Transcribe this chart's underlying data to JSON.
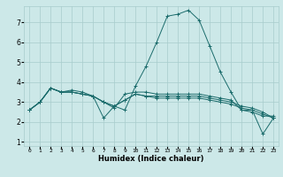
{
  "xlabel": "Humidex (Indice chaleur)",
  "ylabel": "",
  "xlim": [
    -0.5,
    23.5
  ],
  "ylim": [
    0.8,
    7.8
  ],
  "yticks": [
    1,
    2,
    3,
    4,
    5,
    6,
    7
  ],
  "xticks": [
    0,
    1,
    2,
    3,
    4,
    5,
    6,
    7,
    8,
    9,
    10,
    11,
    12,
    13,
    14,
    15,
    16,
    17,
    18,
    19,
    20,
    21,
    22,
    23
  ],
  "background_color": "#cce8e8",
  "grid_color": "#a8cccc",
  "line_color": "#1a6b6b",
  "lines": [
    {
      "x": [
        0,
        1,
        2,
        3,
        4,
        5,
        6,
        7,
        8,
        9,
        10,
        11,
        12,
        13,
        14,
        15,
        16,
        17,
        18,
        19,
        20,
        21,
        22,
        23
      ],
      "y": [
        2.6,
        3.0,
        3.7,
        3.5,
        3.5,
        3.4,
        3.3,
        2.2,
        2.8,
        2.6,
        3.8,
        4.8,
        6.0,
        7.3,
        7.4,
        7.6,
        7.1,
        5.8,
        4.5,
        3.5,
        2.6,
        2.6,
        1.4,
        2.2
      ]
    },
    {
      "x": [
        0,
        1,
        2,
        3,
        4,
        5,
        6,
        7,
        8,
        9,
        10,
        11,
        12,
        13,
        14,
        15,
        16,
        17,
        18,
        19,
        20,
        21,
        22,
        23
      ],
      "y": [
        2.6,
        3.0,
        3.7,
        3.5,
        3.6,
        3.5,
        3.3,
        3.0,
        2.7,
        3.4,
        3.5,
        3.5,
        3.4,
        3.4,
        3.4,
        3.4,
        3.4,
        3.3,
        3.2,
        3.1,
        2.6,
        2.5,
        2.3,
        2.3
      ]
    },
    {
      "x": [
        0,
        1,
        2,
        3,
        4,
        5,
        6,
        7,
        8,
        9,
        10,
        11,
        12,
        13,
        14,
        15,
        16,
        17,
        18,
        19,
        20,
        21,
        22,
        23
      ],
      "y": [
        2.6,
        3.0,
        3.7,
        3.5,
        3.5,
        3.4,
        3.3,
        3.0,
        2.8,
        3.1,
        3.4,
        3.3,
        3.3,
        3.3,
        3.3,
        3.3,
        3.3,
        3.2,
        3.1,
        3.0,
        2.8,
        2.7,
        2.5,
        2.2
      ]
    },
    {
      "x": [
        0,
        1,
        2,
        3,
        4,
        5,
        6,
        7,
        8,
        9,
        10,
        11,
        12,
        13,
        14,
        15,
        16,
        17,
        18,
        19,
        20,
        21,
        22,
        23
      ],
      "y": [
        2.6,
        3.0,
        3.7,
        3.5,
        3.5,
        3.4,
        3.3,
        3.0,
        2.8,
        3.1,
        3.4,
        3.3,
        3.2,
        3.2,
        3.2,
        3.2,
        3.2,
        3.1,
        3.0,
        2.9,
        2.7,
        2.6,
        2.4,
        2.2
      ]
    }
  ]
}
